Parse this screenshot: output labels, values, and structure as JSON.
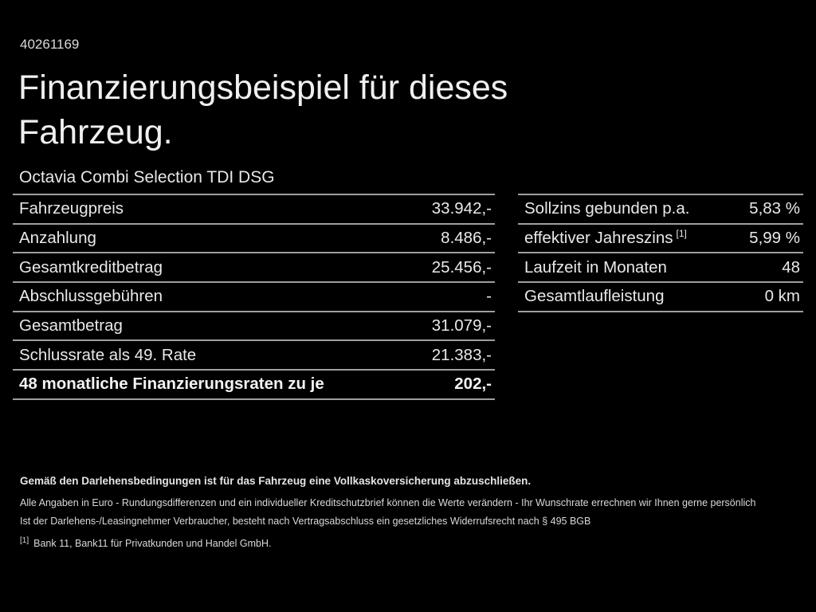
{
  "page": {
    "ref_number": "40261169",
    "title_line1": "Finanzierungsbeispiel für dieses",
    "title_line2": "Fahrzeug.",
    "subtitle": "Octavia Combi Selection TDI DSG"
  },
  "left_table": {
    "rows": [
      {
        "label": "Fahrzeugpreis",
        "value": "33.942,-"
      },
      {
        "label": "Anzahlung",
        "value": "8.486,-"
      },
      {
        "label": "Gesamtkreditbetrag",
        "value": "25.456,-"
      },
      {
        "label": "Abschlussgebühren",
        "value": "-"
      },
      {
        "label": "Gesamtbetrag",
        "value": "31.079,-"
      },
      {
        "label": "Schlussrate als 49. Rate",
        "value": "21.383,-"
      },
      {
        "label": "48 monatliche Finanzierungsraten zu je",
        "value": "202,-"
      }
    ]
  },
  "right_table": {
    "rows": [
      {
        "label": "Sollzins gebunden p.a.",
        "sup": "",
        "value": "5,83 %"
      },
      {
        "label": "effektiver Jahreszins",
        "sup": "[1]",
        "value": "5,99 %"
      },
      {
        "label": "Laufzeit in Monaten",
        "sup": "",
        "value": "48"
      },
      {
        "label": "Gesamtlaufleistung",
        "sup": "",
        "value": "0 km"
      }
    ]
  },
  "footer": {
    "line_bold": "Gemäß den Darlehensbedingungen ist für das Fahrzeug eine Vollkaskoversicherung abzuschließen.",
    "line2": "Alle Angaben in Euro - Rundungsdifferenzen und ein individueller Kreditschutzbrief können die Werte verändern - Ihr Wunschrate errechnen wir Ihnen gerne persönlich",
    "line3": "Ist der Darlehens-/Leasingnehmer Verbraucher, besteht nach Vertragsabschluss ein gesetzliches Widerrufsrecht nach § 495 BGB",
    "footnote_marker": "[1]",
    "footnote_text": "Bank 11, Bank11 für Privatkunden und Handel GmbH."
  },
  "colors": {
    "background": "#000000",
    "text": "#e8e8e8",
    "divider": "#9f9f9f"
  }
}
